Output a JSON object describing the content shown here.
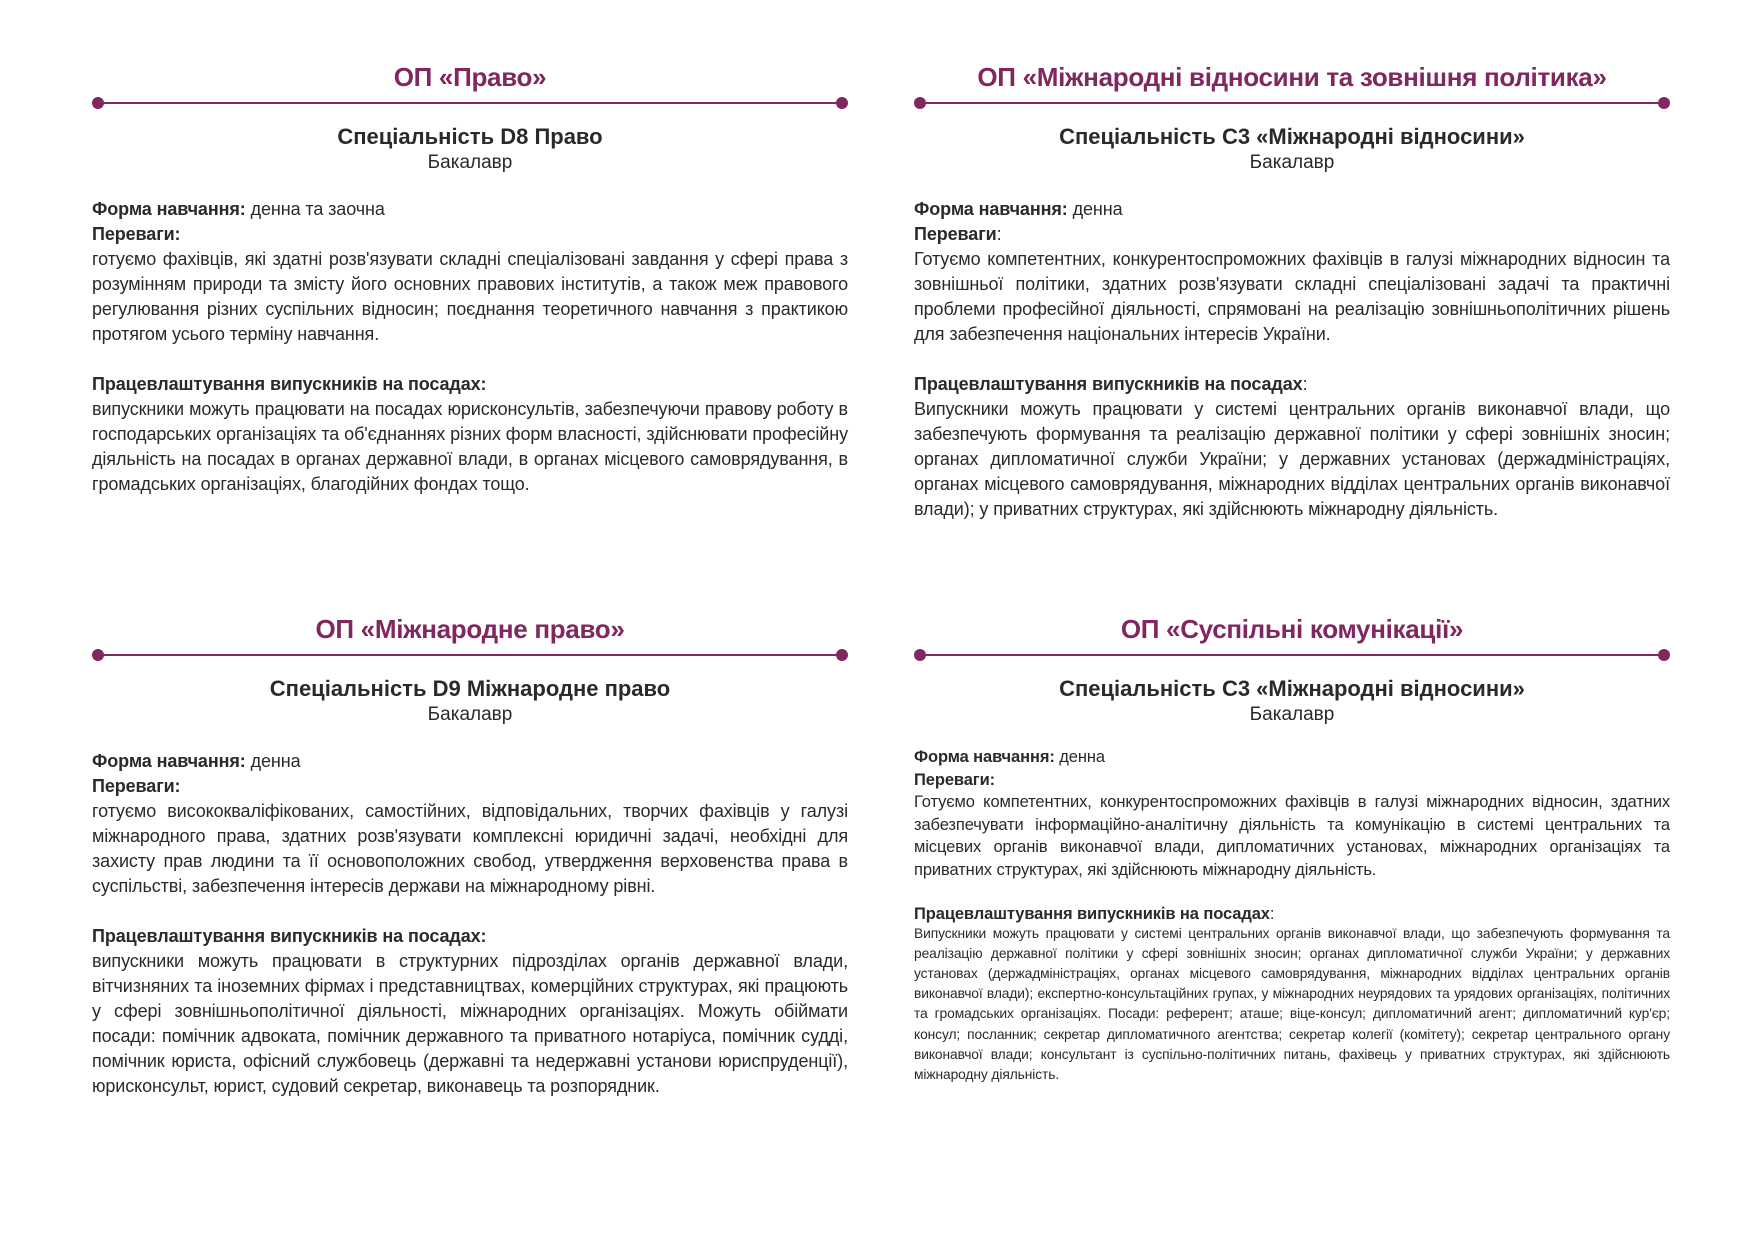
{
  "sections": [
    {
      "op": "ОП «Право»",
      "spec": "Спеціальність D8 Право",
      "degree": "Бакалавр",
      "form_label": "Форма навчання:",
      "form_value": " денна та заочна",
      "adv_label": "Переваги:",
      "adv_suffix": "",
      "adv_text": "готуємо фахівців, які  здатні розв'язувати складні спеціалізовані завдання у сфері права з розумінням природи та змісту його основних правових інститутів, а також меж правового регулювання різних суспільних відносин; поєднання теоретичного навчання з практикою протягом усього терміну навчання.",
      "emp_label": "Працевлаштування випускників на посадах:",
      "emp_suffix": "",
      "emp_text": "випускники можуть працювати на посадах юрисконсультів, забезпечуючи правову роботу в господарських організаціях та об'єднаннях різних форм власності, здійснювати професійну діяльність на посадах в органах державної влади, в органах місцевого самоврядування, в громадських організаціях, благодійних фондах тощо."
    },
    {
      "op": "ОП «Міжнародні відносини та зовнішня політика»",
      "spec": "Спеціальність С3 «Міжнародні відносини»",
      "degree": "Бакалавр",
      "form_label": "Форма навчання:",
      "form_value": " денна",
      "adv_label": "Переваги",
      "adv_suffix": ":",
      "adv_text": "Готуємо компетентних, конкурентоспроможних фахівців в галузі міжнародних відносин та зовнішньої політики, здатних розв'язувати складні спеціалізовані задачі та практичні проблеми професійної діяльності, спрямовані на реалізацію зовнішньополітичних рішень для забезпечення національних інтересів України.",
      "emp_label": "Працевлаштування випускників на посадах",
      "emp_suffix": ":",
      "emp_text": "Випускники можуть працювати у системі центральних органів виконавчої влади, що забезпечують формування та реалізацію державної політики у сфері зовнішніх зносин; органах дипломатичної служби України; у державних установах (держадміністраціях, органах місцевого самоврядування, міжнародних відділах центральних органів виконавчої влади); у приватних структурах, які здійснюють міжнародну діяльність."
    },
    {
      "op": "ОП «Міжнародне право»",
      "spec": "Спеціальність D9  Міжнародне право",
      "degree": "Бакалавр",
      "form_label": "Форма навчання:",
      "form_value": " денна",
      "adv_label": "Переваги:",
      "adv_suffix": "",
      "adv_text": "готуємо висококваліфікованих, самостійних, відповідальних, творчих фахівців у галузі міжнародного права, здатних розв'язувати комплексні юридичні задачі, необхідні для захисту прав людини та її основоположних свобод, утвердження верховенства права в суспільстві, забезпечення інтересів держави на міжнародному рівні.",
      "emp_label": "Працевлаштування випускників на посадах:",
      "emp_suffix": "",
      "emp_text": "випускники можуть працювати в структурних підрозділах органів державної влади, вітчизняних та іноземних фірмах і представництвах, комерційних структурах, які працюють у сфері зовнішньополітичної діяльності, міжнародних організаціях. Можуть обіймати посади: помічник адвоката, помічник державного та приватного нотаріуса, помічник судді, помічник юриста, офісний службовець (державні та недержавні установи юриспруденції), юрисконсульт, юрист, судовий секретар, виконавець та розпорядник."
    },
    {
      "op": "ОП «Суспільні комунікації»",
      "spec": "Спеціальність С3   «Міжнародні відносини»",
      "degree": "Бакалавр",
      "form_label": "Форма навчання:",
      "form_value": " денна",
      "adv_label": "Переваги:",
      "adv_suffix": "",
      "adv_text": "Готуємо компетентних, конкурентоспроможних фахівців в галузі міжнародних відносин, здатних забезпечувати інформаційно-аналітичну діяльність та комунікацію в системі центральних та місцевих органів виконавчої влади, дипломатичних установах, міжнародних організаціях та приватних структурах, які здійснюють міжнародну діяльність.",
      "emp_label": "Працевлаштування випускників на посадах",
      "emp_suffix": ":",
      "emp_text": "Випускники можуть працювати у системі центральних органів виконавчої влади, що забезпечують формування та реалізацію державної політики у сфері зовнішніх зносин; органах дипломатичної служби України; у державних установах (держадміністраціях, органах місцевого самоврядування, міжнародних відділах центральних органів виконавчої влади); експертно-консультаційних групах, у міжнародних неурядових та урядових організаціях, політичних та громадських організаціях. Посади: референт; аташе; віце-консул; дипломатичний агент; дипломатичний кур'єр;  консул; посланник; секретар дипломатичного агентства; секретар колегії (комітету); секретар центрального органу виконавчої влади; консультант із суспільно-політичних питань, фахівець у приватних структурах, які здійснюють міжнародну діяльність."
    }
  ],
  "colors": {
    "accent": "#80275f",
    "text": "#2a2a2a"
  }
}
